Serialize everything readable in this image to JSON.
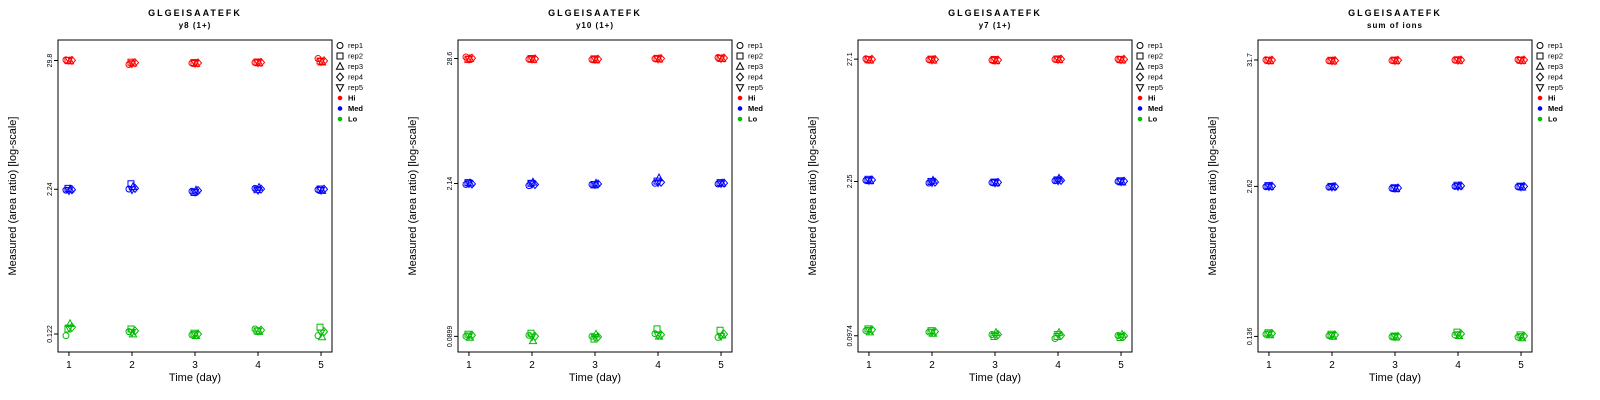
{
  "figure": {
    "background": "#FFFFFF"
  },
  "legend": {
    "reps": [
      {
        "label": "rep1",
        "shape": "circle"
      },
      {
        "label": "rep2",
        "shape": "square"
      },
      {
        "label": "rep3",
        "shape": "triangle-up"
      },
      {
        "label": "rep4",
        "shape": "diamond"
      },
      {
        "label": "rep5",
        "shape": "triangle-down"
      }
    ],
    "groups": [
      {
        "label": "Hi",
        "color": "#FF0000"
      },
      {
        "label": "Med",
        "color": "#0000FF"
      },
      {
        "label": "Lo",
        "color": "#00BB00"
      }
    ]
  },
  "chart_data": [
    {
      "type": "scatter",
      "title": "GLGEISAATEFK",
      "subtitle": "y8 (1+)",
      "xlabel": "Time (day)",
      "ylabel": "Measured (area ratio) [log-scale]",
      "x_ticks": [
        1,
        2,
        3,
        4,
        5
      ],
      "y_ticks": [
        0.122,
        2.24,
        29.8
      ],
      "ylim": [
        0.085,
        45
      ],
      "yscale": "log",
      "series": [
        {
          "name": "Hi",
          "color": "#FF0000",
          "values_by_day": [
            [
              30.2,
              29.8,
              29.5,
              29.9,
              30.0
            ],
            [
              27.5,
              28.8,
              28.2,
              28.5,
              28.0
            ],
            [
              28.3,
              28.6,
              28.0,
              28.4,
              28.2
            ],
            [
              28.6,
              28.9,
              28.4,
              28.7,
              28.5
            ],
            [
              31.0,
              29.5,
              28.8,
              29.6,
              29.2
            ]
          ]
        },
        {
          "name": "Med",
          "color": "#0000FF",
          "values_by_day": [
            [
              2.2,
              2.28,
              2.24,
              2.22,
              2.18
            ],
            [
              2.25,
              2.5,
              2.35,
              2.28,
              2.22
            ],
            [
              2.15,
              2.1,
              2.2,
              2.18,
              2.12
            ],
            [
              2.28,
              2.22,
              2.32,
              2.25,
              2.2
            ],
            [
              2.22,
              2.25,
              2.18,
              2.24,
              2.2
            ]
          ]
        },
        {
          "name": "Lo",
          "color": "#00BB00",
          "values_by_day": [
            [
              0.118,
              0.135,
              0.15,
              0.14,
              0.138
            ],
            [
              0.128,
              0.135,
              0.122,
              0.13,
              0.126
            ],
            [
              0.12,
              0.124,
              0.118,
              0.122,
              0.121
            ],
            [
              0.135,
              0.13,
              0.128,
              0.132,
              0.13
            ],
            [
              0.118,
              0.14,
              0.115,
              0.128,
              0.125
            ]
          ]
        }
      ]
    },
    {
      "type": "scatter",
      "title": "GLGEISAATEFK",
      "subtitle": "y10 (1+)",
      "xlabel": "Time (day)",
      "ylabel": "Measured (area ratio) [log-scale]",
      "x_ticks": [
        1,
        2,
        3,
        4,
        5
      ],
      "y_ticks": [
        0.0899,
        2.14,
        28.6
      ],
      "ylim": [
        0.065,
        42
      ],
      "yscale": "log",
      "series": [
        {
          "name": "Hi",
          "color": "#FF0000",
          "values_by_day": [
            [
              29.5,
              28.0,
              28.6,
              28.8,
              28.4
            ],
            [
              28.2,
              28.6,
              28.0,
              28.4,
              28.3
            ],
            [
              28.0,
              28.4,
              27.8,
              28.2,
              28.1
            ],
            [
              28.5,
              28.7,
              28.3,
              28.6,
              28.4
            ],
            [
              29.2,
              28.8,
              28.5,
              28.9,
              28.6
            ]
          ]
        },
        {
          "name": "Med",
          "color": "#0000FF",
          "values_by_day": [
            [
              2.1,
              2.18,
              2.16,
              2.12,
              2.14
            ],
            [
              2.05,
              2.15,
              2.2,
              2.1,
              2.12
            ],
            [
              2.1,
              2.08,
              2.15,
              2.12,
              2.1
            ],
            [
              2.15,
              2.25,
              2.4,
              2.2,
              2.18
            ],
            [
              2.12,
              2.18,
              2.15,
              2.16,
              2.14
            ]
          ]
        },
        {
          "name": "Lo",
          "color": "#00BB00",
          "values_by_day": [
            [
              0.09,
              0.094,
              0.088,
              0.092,
              0.091
            ],
            [
              0.092,
              0.096,
              0.082,
              0.09,
              0.089
            ],
            [
              0.09,
              0.085,
              0.094,
              0.089,
              0.088
            ],
            [
              0.095,
              0.105,
              0.09,
              0.093,
              0.092
            ],
            [
              0.088,
              0.102,
              0.092,
              0.094,
              0.09
            ]
          ]
        }
      ]
    },
    {
      "type": "scatter",
      "title": "GLGEISAATEFK",
      "subtitle": "y7 (1+)",
      "xlabel": "Time (day)",
      "ylabel": "Measured (area ratio) [log-scale]",
      "x_ticks": [
        1,
        2,
        3,
        4,
        5
      ],
      "y_ticks": [
        0.0974,
        2.25,
        27.1
      ],
      "ylim": [
        0.07,
        40
      ],
      "yscale": "log",
      "series": [
        {
          "name": "Hi",
          "color": "#FF0000",
          "values_by_day": [
            [
              27.3,
              26.8,
              26.5,
              27.0,
              26.9
            ],
            [
              26.8,
              27.1,
              26.5,
              26.9,
              26.7
            ],
            [
              26.5,
              26.9,
              26.2,
              26.6,
              26.5
            ],
            [
              27.0,
              27.2,
              26.8,
              27.1,
              26.9
            ],
            [
              27.2,
              26.9,
              26.6,
              27.0,
              26.8
            ]
          ]
        },
        {
          "name": "Med",
          "color": "#0000FF",
          "values_by_day": [
            [
              2.3,
              2.35,
              2.28,
              2.32,
              2.3
            ],
            [
              2.18,
              2.25,
              2.3,
              2.22,
              2.2
            ],
            [
              2.2,
              2.22,
              2.18,
              2.21,
              2.19
            ],
            [
              2.28,
              2.32,
              2.4,
              2.3,
              2.28
            ],
            [
              2.25,
              2.28,
              2.22,
              2.26,
              2.24
            ]
          ]
        },
        {
          "name": "Lo",
          "color": "#00BB00",
          "values_by_day": [
            [
              0.108,
              0.112,
              0.105,
              0.11,
              0.109
            ],
            [
              0.105,
              0.108,
              0.102,
              0.106,
              0.105
            ],
            [
              0.1,
              0.096,
              0.104,
              0.1,
              0.099
            ],
            [
              0.092,
              0.096,
              0.104,
              0.098,
              0.1
            ],
            [
              0.098,
              0.094,
              0.1,
              0.097,
              0.096
            ]
          ]
        }
      ]
    },
    {
      "type": "scatter",
      "title": "GLGEISAATEFK",
      "subtitle": "sum of ions",
      "xlabel": "Time (day)",
      "ylabel": "Measured (area ratio) [log-scale]",
      "x_ticks": [
        1,
        2,
        3,
        4,
        5
      ],
      "y_ticks": [
        0.136,
        2.62,
        31.7
      ],
      "ylim": [
        0.1,
        47
      ],
      "yscale": "log",
      "series": [
        {
          "name": "Hi",
          "color": "#FF0000",
          "values_by_day": [
            [
              31.8,
              31.5,
              31.2,
              31.6,
              31.4
            ],
            [
              31.2,
              31.5,
              31.0,
              31.3,
              31.2
            ],
            [
              31.4,
              31.6,
              31.2,
              31.5,
              31.3
            ],
            [
              31.6,
              31.8,
              31.4,
              31.7,
              31.5
            ],
            [
              32.0,
              31.6,
              31.3,
              31.7,
              31.5
            ]
          ]
        },
        {
          "name": "Med",
          "color": "#0000FF",
          "values_by_day": [
            [
              2.6,
              2.66,
              2.62,
              2.63,
              2.61
            ],
            [
              2.58,
              2.62,
              2.6,
              2.61,
              2.59
            ],
            [
              2.52,
              2.55,
              2.5,
              2.54,
              2.53
            ],
            [
              2.62,
              2.68,
              2.64,
              2.65,
              2.62
            ],
            [
              2.6,
              2.63,
              2.58,
              2.62,
              2.6
            ]
          ]
        },
        {
          "name": "Lo",
          "color": "#00BB00",
          "values_by_day": [
            [
              0.142,
              0.146,
              0.14,
              0.144,
              0.143
            ],
            [
              0.138,
              0.142,
              0.136,
              0.14,
              0.139
            ],
            [
              0.135,
              0.137,
              0.134,
              0.136,
              0.135
            ],
            [
              0.14,
              0.148,
              0.138,
              0.143,
              0.141
            ],
            [
              0.134,
              0.14,
              0.132,
              0.137,
              0.136
            ]
          ]
        }
      ]
    }
  ]
}
